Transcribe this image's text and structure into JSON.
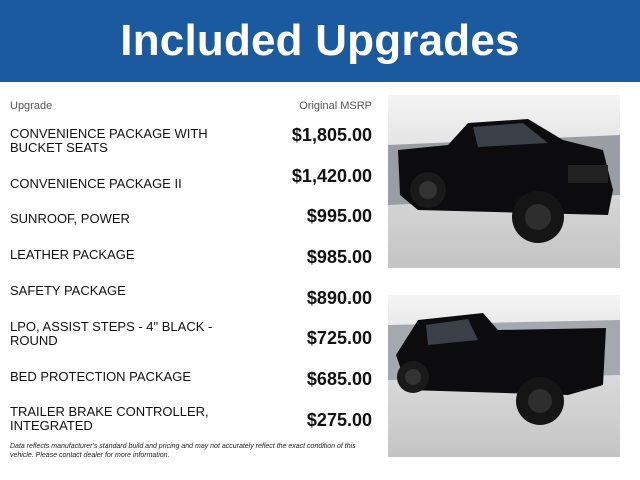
{
  "header": {
    "title": "Included Upgrades",
    "background_color": "#1b5a9e"
  },
  "table": {
    "columns": {
      "upgrade": "Upgrade",
      "msrp": "Original MSRP"
    },
    "rows": [
      {
        "name": "CONVENIENCE PACKAGE WITH BUCKET SEATS",
        "price": "$1,805.00"
      },
      {
        "name": "CONVENIENCE PACKAGE II",
        "price": "$1,420.00"
      },
      {
        "name": "SUNROOF, POWER",
        "price": "$995.00"
      },
      {
        "name": "LEATHER PACKAGE",
        "price": "$985.00"
      },
      {
        "name": "SAFETY PACKAGE",
        "price": "$890.00"
      },
      {
        "name": "LPO, ASSIST STEPS - 4\" BLACK - ROUND",
        "price": "$725.00"
      },
      {
        "name": "BED PROTECTION PACKAGE",
        "price": "$685.00"
      },
      {
        "name": "TRAILER BRAKE CONTROLLER, INTEGRATED",
        "price": "$275.00"
      }
    ]
  },
  "disclaimer": "Data reflects manufacturer's standard build and pricing and may not accurately reflect the exact condition of this vehicle. Please contact dealer for more information.",
  "photos": [
    "black-pickup-truck-front-three-quarter",
    "black-pickup-truck-rear-three-quarter"
  ]
}
